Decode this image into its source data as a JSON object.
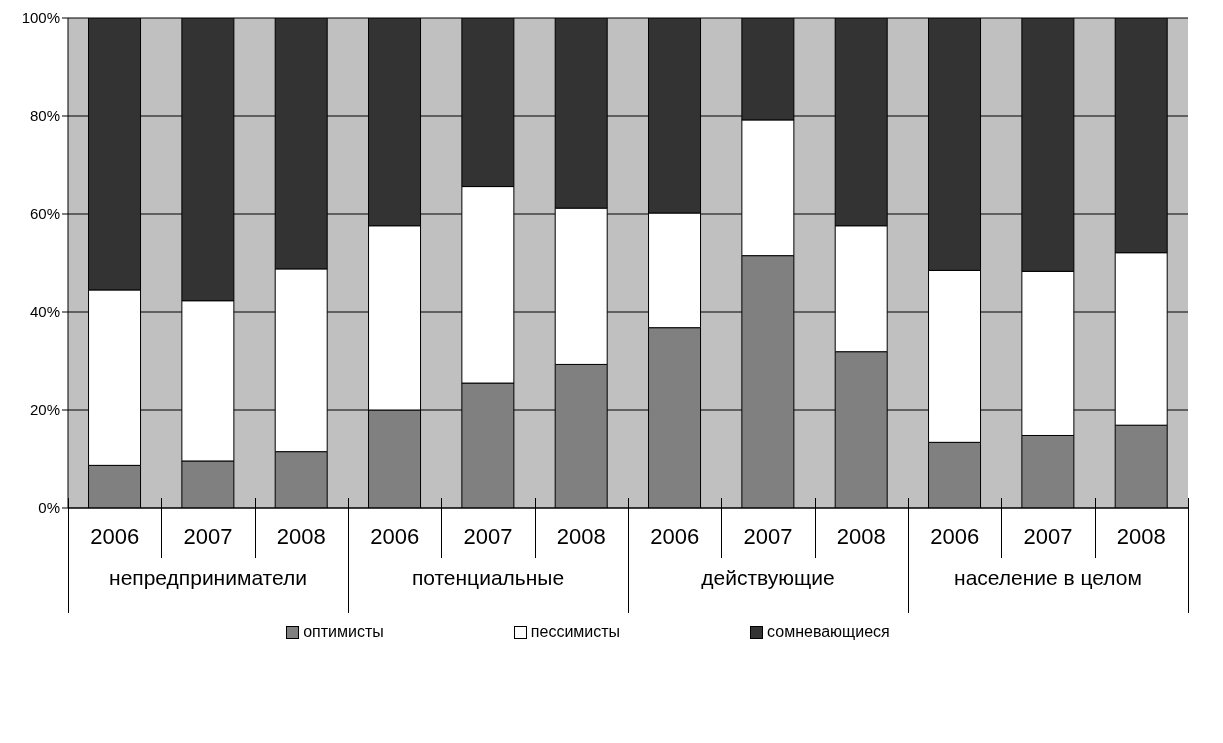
{
  "chart_data": {
    "type": "bar",
    "stacked": true,
    "categories": [
      "2006",
      "2007",
      "2008",
      "2006",
      "2007",
      "2008",
      "2006",
      "2007",
      "2008",
      "2006",
      "2007",
      "2008"
    ],
    "series": [
      {
        "name": "оптимисты",
        "color": "#808080",
        "values": [
          8.7,
          9.6,
          11.5,
          20,
          25.5,
          29.3,
          36.8,
          51.5,
          31.9,
          13.4,
          14.8,
          16.9
        ]
      },
      {
        "name": "пессимисты",
        "color": "#ffffff",
        "values": [
          35.8,
          32.7,
          37.3,
          37.6,
          40.1,
          31.9,
          23.4,
          27.7,
          25.7,
          35.1,
          33.5,
          35.2
        ]
      },
      {
        "name": "сомневающиеся",
        "color": "#333333",
        "values": [
          55.5,
          57.7,
          51.2,
          42.4,
          34.4,
          38.8,
          39.8,
          20.8,
          42.4,
          51.5,
          51.7,
          47.9
        ]
      }
    ],
    "annotations": [
      "непредприниматели",
      "потенциальные",
      "действующие",
      "население в целом"
    ],
    "ylim": [
      0,
      100
    ],
    "yticks": [
      {
        "value": 0,
        "label": "0%"
      },
      {
        "value": 20,
        "label": "20%"
      },
      {
        "value": 40,
        "label": "40%"
      },
      {
        "value": 60,
        "label": "60%"
      },
      {
        "value": 80,
        "label": "80%"
      },
      {
        "value": 100,
        "label": "100%"
      }
    ],
    "grid": "y",
    "legend": "bottom",
    "marker": "square"
  }
}
